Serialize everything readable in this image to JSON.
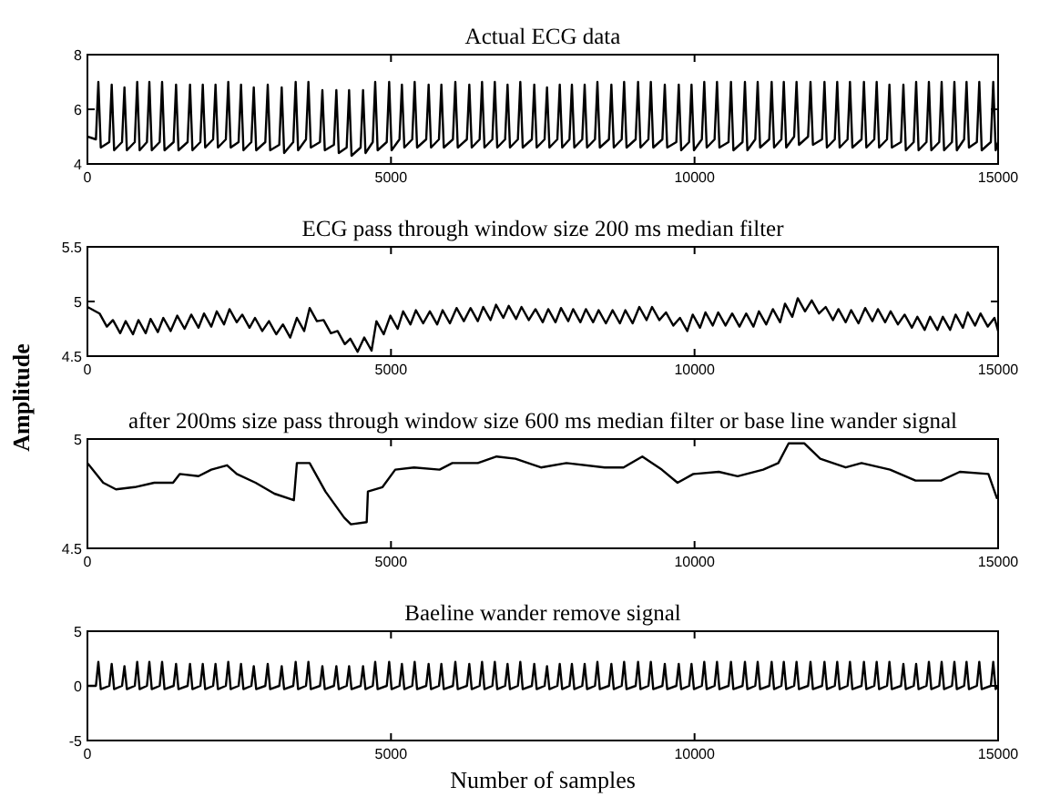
{
  "chart_data": [
    {
      "type": "line",
      "title": "Actual ECG data",
      "xlim": [
        0,
        15000
      ],
      "xticks": [
        0,
        5000,
        10000,
        15000
      ],
      "ylim": [
        4,
        8
      ],
      "yticks": [
        4,
        6,
        8
      ],
      "line_style": "solid",
      "marker": "none",
      "grid": false,
      "series": [
        {
          "color": "#000000",
          "x": [
            0,
            140,
            180,
            220,
            360,
            400,
            440,
            570,
            610,
            650,
            780,
            820,
            860,
            980,
            1020,
            1060,
            1190,
            1230,
            1270,
            1420,
            1460,
            1500,
            1650,
            1690,
            1730,
            1860,
            1900,
            1940,
            2070,
            2110,
            2150,
            2280,
            2320,
            2360,
            2490,
            2530,
            2570,
            2700,
            2740,
            2780,
            2930,
            2970,
            3010,
            3160,
            3200,
            3240,
            3390,
            3430,
            3470,
            3600,
            3640,
            3680,
            3830,
            3870,
            3910,
            4060,
            4100,
            4140,
            4270,
            4310,
            4350,
            4500,
            4540,
            4580,
            4700,
            4740,
            4780,
            4930,
            4970,
            5010,
            5140,
            5180,
            5220,
            5350,
            5390,
            5430,
            5580,
            5620,
            5660,
            5790,
            5830,
            5870,
            6020,
            6060,
            6100,
            6250,
            6290,
            6330,
            6460,
            6500,
            6540,
            6670,
            6710,
            6750,
            6880,
            6920,
            6960,
            7090,
            7130,
            7170,
            7320,
            7360,
            7400,
            7530,
            7570,
            7610,
            7740,
            7780,
            7820,
            7940,
            7980,
            8020,
            8150,
            8190,
            8230,
            8360,
            8400,
            8440,
            8590,
            8630,
            8670,
            8800,
            8840,
            8880,
            9030,
            9070,
            9110,
            9240,
            9280,
            9320,
            9470,
            9510,
            9550,
            9700,
            9740,
            9780,
            9910,
            9950,
            9990,
            10120,
            10160,
            10200,
            10330,
            10370,
            10410,
            10560,
            10600,
            10640,
            10790,
            10830,
            10870,
            11000,
            11040,
            11080,
            11230,
            11270,
            11310,
            11430,
            11470,
            11510,
            11640,
            11680,
            11720,
            11870,
            11910,
            11950,
            12100,
            12140,
            12180,
            12310,
            12350,
            12390,
            12520,
            12560,
            12600,
            12750,
            12790,
            12830,
            12960,
            13000,
            13040,
            13170,
            13210,
            13250,
            13400,
            13440,
            13480,
            13610,
            13650,
            13690,
            13820,
            13860,
            13900,
            14030,
            14070,
            14110,
            14240,
            14280,
            14320,
            14440,
            14480,
            14520,
            14650,
            14690,
            14730,
            14880,
            14920,
            14960,
            15000
          ],
          "values": [
            5.0,
            4.9,
            7.0,
            4.6,
            4.8,
            6.9,
            4.5,
            4.8,
            6.8,
            4.5,
            4.8,
            7.0,
            4.5,
            4.8,
            7.0,
            4.5,
            4.8,
            7.0,
            4.5,
            4.8,
            6.9,
            4.5,
            4.8,
            6.9,
            4.5,
            4.8,
            6.9,
            4.6,
            4.9,
            6.9,
            4.6,
            4.9,
            7.0,
            4.6,
            4.8,
            6.9,
            4.5,
            4.8,
            6.8,
            4.5,
            4.8,
            6.9,
            4.5,
            4.7,
            6.8,
            4.4,
            4.8,
            7.0,
            4.5,
            4.9,
            7.0,
            4.6,
            4.8,
            6.7,
            4.5,
            4.7,
            6.7,
            4.4,
            4.6,
            6.7,
            4.3,
            4.6,
            6.7,
            4.4,
            4.8,
            7.0,
            4.5,
            4.8,
            7.0,
            4.5,
            4.9,
            6.9,
            4.6,
            4.9,
            7.0,
            4.6,
            4.9,
            6.9,
            4.6,
            4.9,
            6.9,
            4.6,
            4.9,
            7.0,
            4.6,
            4.9,
            6.9,
            4.6,
            4.9,
            7.0,
            4.6,
            4.9,
            7.0,
            4.6,
            4.9,
            6.9,
            4.6,
            4.9,
            7.0,
            4.6,
            4.9,
            6.9,
            4.6,
            4.9,
            6.8,
            4.6,
            4.9,
            6.9,
            4.6,
            4.9,
            6.9,
            4.6,
            4.9,
            6.9,
            4.6,
            4.9,
            7.0,
            4.6,
            4.9,
            6.9,
            4.6,
            4.9,
            7.0,
            4.6,
            4.9,
            7.0,
            4.6,
            4.9,
            7.0,
            4.6,
            4.9,
            6.9,
            4.6,
            4.8,
            6.9,
            4.5,
            4.8,
            6.9,
            4.5,
            4.9,
            7.0,
            4.6,
            4.9,
            7.0,
            4.6,
            4.8,
            7.0,
            4.5,
            4.8,
            7.0,
            4.5,
            4.9,
            7.0,
            4.6,
            4.9,
            7.0,
            4.6,
            4.9,
            7.0,
            4.6,
            5.0,
            7.0,
            4.7,
            5.0,
            7.0,
            4.7,
            4.9,
            7.0,
            4.6,
            4.9,
            7.0,
            4.6,
            4.9,
            7.0,
            4.6,
            4.9,
            7.0,
            4.6,
            4.9,
            7.0,
            4.6,
            4.9,
            6.9,
            4.6,
            4.8,
            6.9,
            4.5,
            4.8,
            7.0,
            4.5,
            4.8,
            7.0,
            4.5,
            4.8,
            7.0,
            4.5,
            4.8,
            7.0,
            4.5,
            4.9,
            7.0,
            4.6,
            4.8,
            7.0,
            4.5,
            4.8,
            7.0,
            4.5,
            4.8
          ]
        }
      ]
    },
    {
      "type": "line",
      "title": "ECG pass through window size 200 ms median filter",
      "ylabel": "Amplitude",
      "xlim": [
        0,
        15000
      ],
      "xticks": [
        0,
        5000,
        10000,
        15000
      ],
      "ylim": [
        4.5,
        5.5
      ],
      "yticks": [
        4.5,
        5,
        5.5
      ],
      "line_style": "solid",
      "marker": "none",
      "grid": false,
      "series": [
        {
          "color": "#000000",
          "x": [
            0,
            200,
            320,
            420,
            540,
            630,
            750,
            840,
            960,
            1040,
            1160,
            1250,
            1370,
            1480,
            1600,
            1710,
            1830,
            1920,
            2040,
            2130,
            2250,
            2340,
            2460,
            2550,
            2670,
            2760,
            2880,
            2990,
            3110,
            3220,
            3340,
            3450,
            3570,
            3660,
            3780,
            3890,
            4010,
            4120,
            4240,
            4330,
            4450,
            4560,
            4680,
            4760,
            4880,
            4990,
            5110,
            5200,
            5320,
            5410,
            5530,
            5640,
            5760,
            5850,
            5970,
            6080,
            6200,
            6310,
            6430,
            6520,
            6640,
            6730,
            6850,
            6940,
            7060,
            7150,
            7270,
            7380,
            7500,
            7590,
            7710,
            7800,
            7920,
            8000,
            8120,
            8210,
            8330,
            8420,
            8540,
            8650,
            8770,
            8860,
            8980,
            9090,
            9210,
            9300,
            9420,
            9530,
            9650,
            9760,
            9880,
            9970,
            10090,
            10180,
            10300,
            10390,
            10510,
            10620,
            10740,
            10850,
            10970,
            11060,
            11180,
            11290,
            11410,
            11490,
            11610,
            11700,
            11820,
            11930,
            12050,
            12160,
            12280,
            12370,
            12490,
            12580,
            12700,
            12810,
            12930,
            13020,
            13140,
            13230,
            13350,
            13460,
            13580,
            13670,
            13790,
            13880,
            14000,
            14090,
            14210,
            14300,
            14420,
            14500,
            14620,
            14710,
            14830,
            14940,
            15000
          ],
          "values": [
            4.95,
            4.89,
            4.77,
            4.83,
            4.71,
            4.82,
            4.7,
            4.83,
            4.71,
            4.84,
            4.72,
            4.85,
            4.73,
            4.87,
            4.75,
            4.88,
            4.76,
            4.89,
            4.77,
            4.91,
            4.79,
            4.93,
            4.81,
            4.88,
            4.76,
            4.85,
            4.73,
            4.82,
            4.7,
            4.79,
            4.67,
            4.85,
            4.73,
            4.94,
            4.82,
            4.83,
            4.71,
            4.73,
            4.61,
            4.66,
            4.54,
            4.67,
            4.55,
            4.82,
            4.7,
            4.87,
            4.75,
            4.91,
            4.79,
            4.92,
            4.8,
            4.91,
            4.79,
            4.92,
            4.8,
            4.94,
            4.82,
            4.94,
            4.82,
            4.95,
            4.83,
            4.97,
            4.85,
            4.96,
            4.84,
            4.95,
            4.83,
            4.93,
            4.81,
            4.93,
            4.81,
            4.94,
            4.82,
            4.93,
            4.81,
            4.93,
            4.81,
            4.92,
            4.8,
            4.92,
            4.8,
            4.92,
            4.8,
            4.95,
            4.83,
            4.95,
            4.83,
            4.9,
            4.78,
            4.85,
            4.73,
            4.88,
            4.76,
            4.9,
            4.78,
            4.9,
            4.78,
            4.89,
            4.77,
            4.89,
            4.77,
            4.91,
            4.79,
            4.93,
            4.81,
            4.98,
            4.86,
            5.03,
            4.91,
            5.01,
            4.89,
            4.95,
            4.83,
            4.93,
            4.81,
            4.92,
            4.8,
            4.94,
            4.82,
            4.93,
            4.81,
            4.91,
            4.79,
            4.88,
            4.76,
            4.86,
            4.74,
            4.86,
            4.74,
            4.86,
            4.74,
            4.88,
            4.76,
            4.9,
            4.78,
            4.89,
            4.77,
            4.85,
            4.73
          ]
        }
      ]
    },
    {
      "type": "line",
      "title": "after 200ms size pass through window size 600 ms median filter or base line wander signal",
      "xlim": [
        0,
        15000
      ],
      "xticks": [
        0,
        5000,
        10000,
        15000
      ],
      "ylim": [
        4.5,
        5
      ],
      "yticks": [
        4.5,
        5
      ],
      "line_style": "solid",
      "marker": "none",
      "grid": false,
      "series": [
        {
          "color": "#000000",
          "x": [
            0,
            260,
            470,
            780,
            1100,
            1410,
            1520,
            1830,
            2040,
            2300,
            2460,
            2770,
            3080,
            3400,
            3450,
            3660,
            3920,
            4230,
            4340,
            4600,
            4620,
            4860,
            5070,
            5380,
            5800,
            6010,
            6430,
            6740,
            7050,
            7470,
            7890,
            8520,
            8830,
            9140,
            9460,
            9720,
            9980,
            10400,
            10710,
            11130,
            11380,
            11550,
            11810,
            12070,
            12490,
            12750,
            13220,
            13640,
            14060,
            14370,
            14840,
            14980
          ],
          "values": [
            4.89,
            4.8,
            4.77,
            4.78,
            4.8,
            4.8,
            4.84,
            4.83,
            4.86,
            4.88,
            4.84,
            4.8,
            4.75,
            4.72,
            4.89,
            4.89,
            4.76,
            4.64,
            4.61,
            4.62,
            4.76,
            4.78,
            4.86,
            4.87,
            4.86,
            4.89,
            4.89,
            4.92,
            4.91,
            4.87,
            4.89,
            4.87,
            4.87,
            4.92,
            4.86,
            4.8,
            4.84,
            4.85,
            4.83,
            4.86,
            4.89,
            4.98,
            4.98,
            4.91,
            4.87,
            4.89,
            4.86,
            4.81,
            4.81,
            4.85,
            4.84,
            4.73
          ]
        }
      ]
    },
    {
      "type": "line",
      "title": "Baeline wander remove signal",
      "xlabel": "Number of samples",
      "xlim": [
        0,
        15000
      ],
      "xticks": [
        0,
        5000,
        10000,
        15000
      ],
      "ylim": [
        -5,
        5
      ],
      "yticks": [
        -5,
        0,
        5
      ],
      "line_style": "solid",
      "marker": "none",
      "grid": false,
      "series": [
        {
          "color": "#000000",
          "x": [
            0,
            140,
            180,
            220,
            360,
            400,
            440,
            570,
            610,
            650,
            780,
            820,
            860,
            980,
            1020,
            1060,
            1190,
            1230,
            1270,
            1420,
            1460,
            1500,
            1650,
            1690,
            1730,
            1860,
            1900,
            1940,
            2070,
            2110,
            2150,
            2280,
            2320,
            2360,
            2490,
            2530,
            2570,
            2700,
            2740,
            2780,
            2930,
            2970,
            3010,
            3160,
            3200,
            3240,
            3390,
            3430,
            3470,
            3600,
            3640,
            3680,
            3830,
            3870,
            3910,
            4060,
            4100,
            4140,
            4270,
            4310,
            4350,
            4500,
            4540,
            4580,
            4700,
            4740,
            4780,
            4930,
            4970,
            5010,
            5140,
            5180,
            5220,
            5350,
            5390,
            5430,
            5580,
            5620,
            5660,
            5790,
            5830,
            5870,
            6020,
            6060,
            6100,
            6250,
            6290,
            6330,
            6460,
            6500,
            6540,
            6670,
            6710,
            6750,
            6880,
            6920,
            6960,
            7090,
            7130,
            7170,
            7320,
            7360,
            7400,
            7530,
            7570,
            7610,
            7740,
            7780,
            7820,
            7940,
            7980,
            8020,
            8150,
            8190,
            8230,
            8360,
            8400,
            8440,
            8590,
            8630,
            8670,
            8800,
            8840,
            8880,
            9030,
            9070,
            9110,
            9240,
            9280,
            9320,
            9470,
            9510,
            9550,
            9700,
            9740,
            9780,
            9910,
            9950,
            9990,
            10120,
            10160,
            10200,
            10330,
            10370,
            10410,
            10560,
            10600,
            10640,
            10790,
            10830,
            10870,
            11000,
            11040,
            11080,
            11230,
            11270,
            11310,
            11430,
            11470,
            11510,
            11640,
            11680,
            11720,
            11870,
            11910,
            11950,
            12100,
            12140,
            12180,
            12310,
            12350,
            12390,
            12520,
            12560,
            12600,
            12750,
            12790,
            12830,
            12960,
            13000,
            13040,
            13170,
            13210,
            13250,
            13400,
            13440,
            13480,
            13610,
            13650,
            13690,
            13820,
            13860,
            13900,
            14030,
            14070,
            14110,
            14240,
            14280,
            14320,
            14440,
            14480,
            14520,
            14650,
            14690,
            14730,
            14880,
            14920,
            14960,
            15000
          ],
          "values": [
            0,
            0,
            2.2,
            -0.3,
            0,
            2.0,
            -0.3,
            0,
            1.8,
            -0.3,
            0,
            2.2,
            -0.3,
            0,
            2.2,
            -0.3,
            0,
            2.2,
            -0.3,
            0,
            2.0,
            -0.3,
            0,
            2.0,
            -0.3,
            0,
            2.0,
            -0.3,
            0,
            2.0,
            -0.3,
            0,
            2.2,
            -0.3,
            0,
            2.0,
            -0.3,
            0,
            1.8,
            -0.3,
            0,
            2.0,
            -0.3,
            0,
            1.8,
            -0.3,
            0,
            2.2,
            -0.3,
            0,
            2.2,
            -0.3,
            0,
            1.8,
            -0.3,
            0,
            1.8,
            -0.3,
            0,
            1.8,
            -0.3,
            0,
            1.8,
            -0.3,
            0,
            2.2,
            -0.3,
            0,
            2.2,
            -0.3,
            0,
            2.0,
            -0.3,
            0,
            2.2,
            -0.3,
            0,
            2.0,
            -0.3,
            0,
            2.0,
            -0.3,
            0,
            2.2,
            -0.3,
            0,
            2.0,
            -0.3,
            0,
            2.2,
            -0.3,
            0,
            2.2,
            -0.3,
            0,
            2.0,
            -0.3,
            0,
            2.2,
            -0.3,
            0,
            2.0,
            -0.3,
            0,
            1.8,
            -0.3,
            0,
            2.0,
            -0.3,
            0,
            2.0,
            -0.3,
            0,
            2.0,
            -0.3,
            0,
            2.2,
            -0.3,
            0,
            2.0,
            -0.3,
            0,
            2.2,
            -0.3,
            0,
            2.2,
            -0.3,
            0,
            2.2,
            -0.3,
            0,
            2.0,
            -0.3,
            0,
            2.0,
            -0.3,
            0,
            2.0,
            -0.3,
            0,
            2.2,
            -0.3,
            0,
            2.2,
            -0.3,
            0,
            2.2,
            -0.3,
            0,
            2.2,
            -0.3,
            0,
            2.2,
            -0.3,
            0,
            2.2,
            -0.3,
            0,
            2.2,
            -0.3,
            0,
            2.2,
            -0.3,
            0,
            2.2,
            -0.3,
            0,
            2.2,
            -0.3,
            0,
            2.2,
            -0.3,
            0,
            2.2,
            -0.3,
            0,
            2.2,
            -0.3,
            0,
            2.2,
            -0.3,
            0,
            2.2,
            -0.3,
            0,
            2.0,
            -0.3,
            0,
            2.0,
            -0.3,
            0,
            2.2,
            -0.3,
            0,
            2.2,
            -0.3,
            0,
            2.2,
            -0.3,
            0,
            2.2,
            -0.3,
            0,
            2.2,
            -0.3,
            0,
            2.2,
            -0.3,
            0
          ]
        }
      ]
    }
  ]
}
